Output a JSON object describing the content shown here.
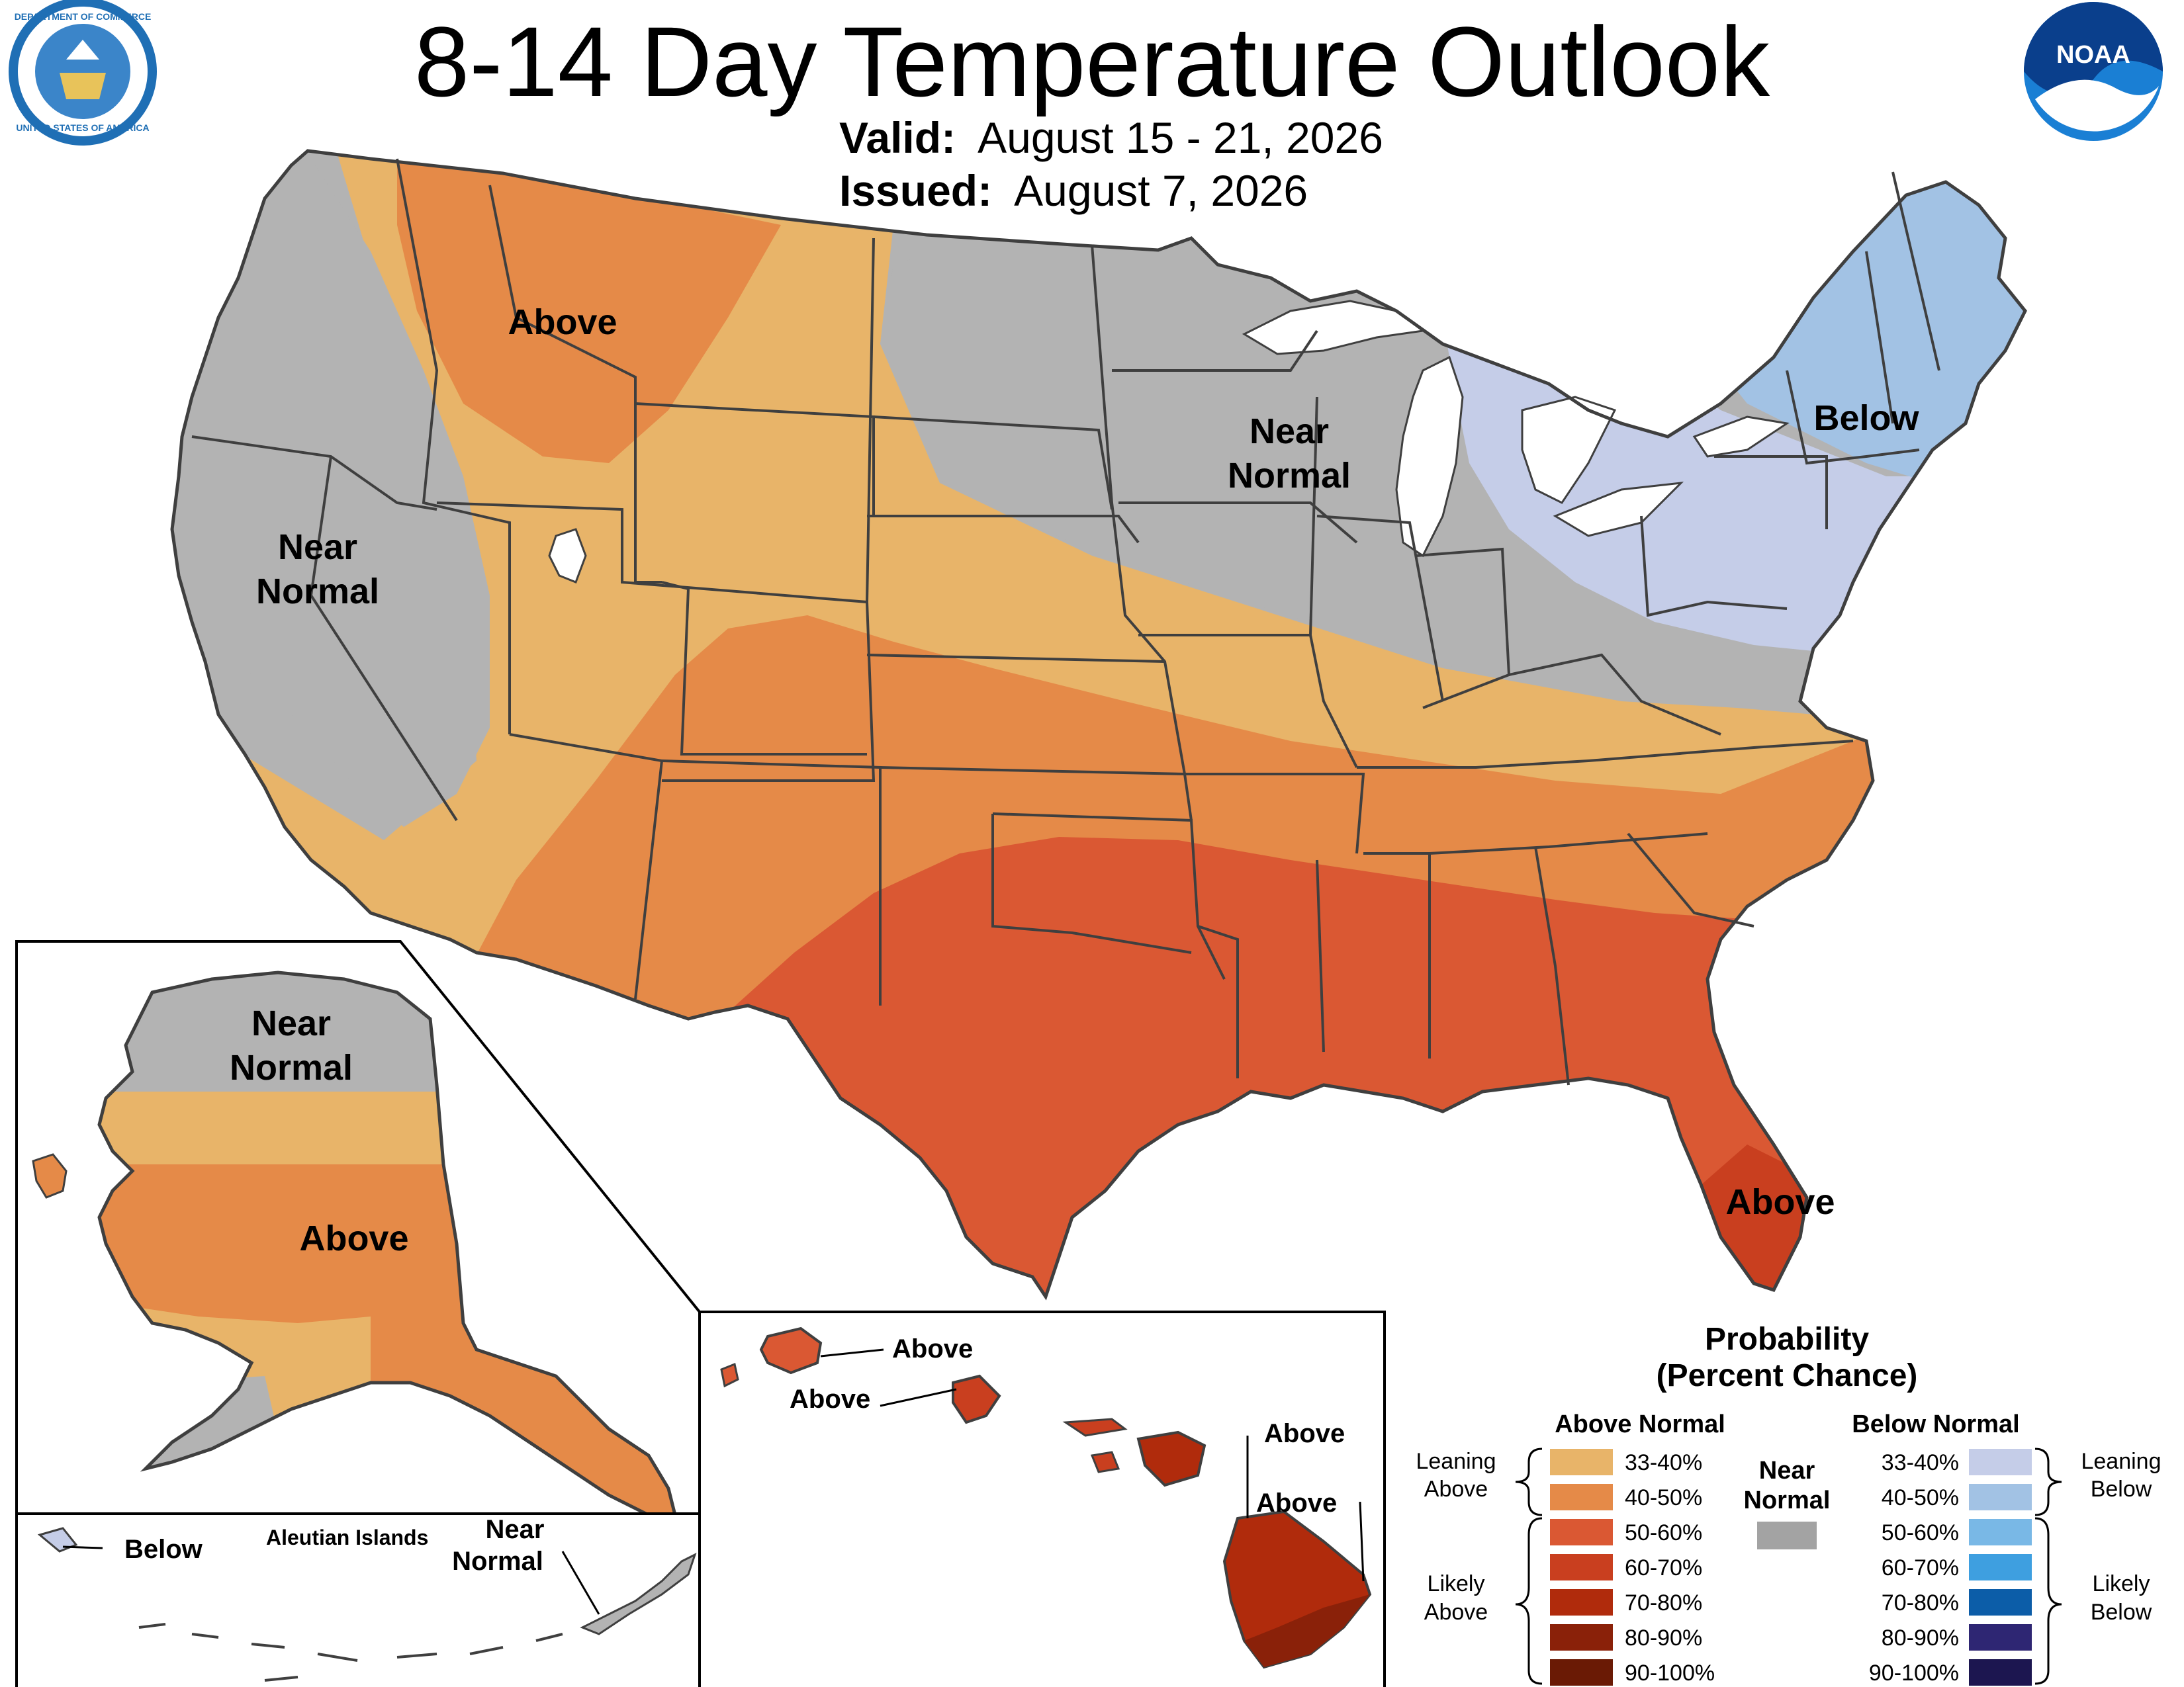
{
  "header": {
    "title": "8-14 Day Temperature Outlook",
    "valid_label": "Valid:",
    "valid_value": "August 15 - 21, 2026",
    "issued_label": "Issued:",
    "issued_value": "August 7, 2026",
    "left_seal_text_top": "DEPARTMENT OF COMMERCE",
    "left_seal_text_bottom": "UNITED STATES OF AMERICA",
    "right_logo_text": "NOAA"
  },
  "map_labels": {
    "conus_above_north": "Above",
    "conus_near_west_1": "Near",
    "conus_near_west_2": "Normal",
    "conus_near_mid_1": "Near",
    "conus_near_mid_2": "Normal",
    "conus_below": "Below",
    "conus_above_fl": "Above",
    "ak_near_1": "Near",
    "ak_near_2": "Normal",
    "ak_above": "Above",
    "aleutian_below": "Below",
    "aleutian_title": "Aleutian Islands",
    "aleutian_near_1": "Near",
    "aleutian_near_2": "Normal",
    "hi_above_kauai": "Above",
    "hi_above_oahu": "Above",
    "hi_above_maui": "Above",
    "hi_above_big": "Above"
  },
  "legend": {
    "title_1": "Probability",
    "title_2": "(Percent Chance)",
    "above_header": "Above Normal",
    "below_header": "Below Normal",
    "near_1": "Near",
    "near_2": "Normal",
    "leaning_above_1": "Leaning",
    "leaning_above_2": "Above",
    "likely_above_1": "Likely",
    "likely_above_2": "Above",
    "leaning_below_1": "Leaning",
    "leaning_below_2": "Below",
    "likely_below_1": "Likely",
    "likely_below_2": "Below",
    "above": [
      {
        "range": "33-40%",
        "color": "#e8b469"
      },
      {
        "range": "40-50%",
        "color": "#e58a48"
      },
      {
        "range": "50-60%",
        "color": "#da5833"
      },
      {
        "range": "60-70%",
        "color": "#c93f1f"
      },
      {
        "range": "70-80%",
        "color": "#b02b0c"
      },
      {
        "range": "80-90%",
        "color": "#8a2109"
      },
      {
        "range": "90-100%",
        "color": "#6a1a05"
      }
    ],
    "below": [
      {
        "range": "33-40%",
        "color": "#c5cde8"
      },
      {
        "range": "40-50%",
        "color": "#a2c2e4"
      },
      {
        "range": "50-60%",
        "color": "#79b8e6"
      },
      {
        "range": "60-70%",
        "color": "#3e9fe0"
      },
      {
        "range": "70-80%",
        "color": "#0c5da8"
      },
      {
        "range": "80-90%",
        "color": "#2e2673"
      },
      {
        "range": "90-100%",
        "color": "#1c1650"
      }
    ],
    "near_color": "#a3a3a3"
  },
  "colors": {
    "near_normal": "#b3b3b3",
    "lean_above": "#e8b469",
    "above_40_50": "#e58a48",
    "above_50_60": "#da5833",
    "above_60_70": "#c93f1f",
    "above_70_80": "#b02b0c",
    "lean_below": "#c5cde8",
    "below_40_50": "#a2c2e4",
    "state_border": "#3f3f3f"
  }
}
